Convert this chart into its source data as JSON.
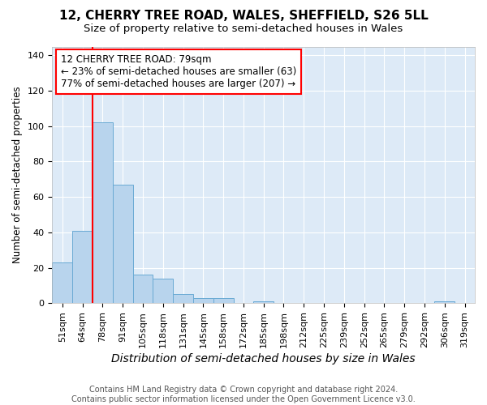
{
  "title1": "12, CHERRY TREE ROAD, WALES, SHEFFIELD, S26 5LL",
  "title2": "Size of property relative to semi-detached houses in Wales",
  "xlabel": "Distribution of semi-detached houses by size in Wales",
  "ylabel": "Number of semi-detached properties",
  "categories": [
    "51sqm",
    "64sqm",
    "78sqm",
    "91sqm",
    "105sqm",
    "118sqm",
    "131sqm",
    "145sqm",
    "158sqm",
    "172sqm",
    "185sqm",
    "198sqm",
    "212sqm",
    "225sqm",
    "239sqm",
    "252sqm",
    "265sqm",
    "279sqm",
    "292sqm",
    "306sqm",
    "319sqm"
  ],
  "values": [
    23,
    41,
    102,
    67,
    16,
    14,
    5,
    3,
    3,
    0,
    1,
    0,
    0,
    0,
    0,
    0,
    0,
    0,
    0,
    1,
    0
  ],
  "bar_color": "#b8d4ed",
  "bar_edge_color": "#6aaad4",
  "red_line_x": 1.5,
  "annotation_line1": "12 CHERRY TREE ROAD: 79sqm",
  "annotation_line2": "← 23% of semi-detached houses are smaller (63)",
  "annotation_line3": "77% of semi-detached houses are larger (207) →",
  "annotation_box_color": "white",
  "annotation_box_edge": "red",
  "red_line_color": "red",
  "ylim": [
    0,
    145
  ],
  "yticks": [
    0,
    20,
    40,
    60,
    80,
    100,
    120,
    140
  ],
  "footer1": "Contains HM Land Registry data © Crown copyright and database right 2024.",
  "footer2": "Contains public sector information licensed under the Open Government Licence v3.0.",
  "plot_background": "#ddeaf7",
  "title1_fontsize": 11,
  "title2_fontsize": 9.5,
  "xlabel_fontsize": 10,
  "ylabel_fontsize": 8.5,
  "tick_fontsize": 8,
  "footer_fontsize": 7,
  "annotation_fontsize": 8.5
}
